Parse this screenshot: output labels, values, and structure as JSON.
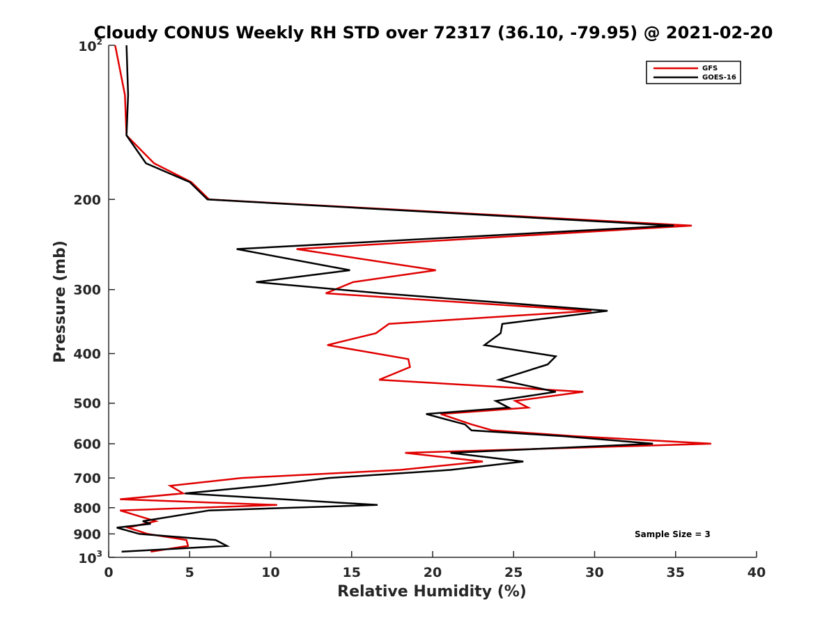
{
  "chart_data": {
    "type": "line",
    "title": "Cloudy CONUS Weekly RH STD over 72317 (36.10, -79.95) @ 2021-02-20",
    "xlabel": "Relative Humidity (%)",
    "ylabel": "Pressure (mb)",
    "xlim": [
      0,
      40
    ],
    "ylim": [
      100,
      1000
    ],
    "y_scale": "log",
    "y_reversed": true,
    "x_ticks": [
      "0",
      "5",
      "10",
      "15",
      "20",
      "25",
      "30",
      "35",
      "40"
    ],
    "y_ticks": [
      {
        "value": 100,
        "label": "10",
        "sup": "2"
      },
      {
        "value": 200,
        "label": "200"
      },
      {
        "value": 300,
        "label": "300"
      },
      {
        "value": 400,
        "label": "400"
      },
      {
        "value": 500,
        "label": "500"
      },
      {
        "value": 600,
        "label": "600"
      },
      {
        "value": 700,
        "label": "700"
      },
      {
        "value": 800,
        "label": "800"
      },
      {
        "value": 900,
        "label": "900"
      },
      {
        "value": 1000,
        "label": "10",
        "sup": "3"
      }
    ],
    "grid": false,
    "legend_position": "top-right",
    "annotation": "Sample Size = 3",
    "series": [
      {
        "name": "GFS",
        "color": "#e00000",
        "points": [
          [
            0.4,
            100
          ],
          [
            1.0,
            125
          ],
          [
            1.1,
            150
          ],
          [
            2.8,
            170
          ],
          [
            5.1,
            185
          ],
          [
            6.2,
            200
          ],
          [
            36.0,
            225
          ],
          [
            11.6,
            250
          ],
          [
            20.2,
            275
          ],
          [
            15.1,
            290
          ],
          [
            13.4,
            305
          ],
          [
            29.8,
            330
          ],
          [
            17.3,
            350
          ],
          [
            16.5,
            365
          ],
          [
            13.5,
            385
          ],
          [
            18.5,
            410
          ],
          [
            18.6,
            425
          ],
          [
            16.7,
            450
          ],
          [
            29.3,
            475
          ],
          [
            25.1,
            495
          ],
          [
            25.9,
            510
          ],
          [
            20.5,
            525
          ],
          [
            22.4,
            550
          ],
          [
            23.7,
            565
          ],
          [
            28.8,
            580
          ],
          [
            37.2,
            600
          ],
          [
            18.3,
            625
          ],
          [
            23.1,
            650
          ],
          [
            18.0,
            675
          ],
          [
            8.2,
            700
          ],
          [
            3.8,
            725
          ],
          [
            4.6,
            750
          ],
          [
            0.7,
            770
          ],
          [
            10.4,
            790
          ],
          [
            0.7,
            810
          ],
          [
            2.9,
            850
          ],
          [
            1.2,
            875
          ],
          [
            2.4,
            900
          ],
          [
            4.8,
            925
          ],
          [
            4.9,
            950
          ],
          [
            2.6,
            975
          ]
        ]
      },
      {
        "name": "GOES-16",
        "color": "#000000",
        "points": [
          [
            1.1,
            100
          ],
          [
            1.2,
            125
          ],
          [
            1.1,
            150
          ],
          [
            2.3,
            170
          ],
          [
            5.0,
            185
          ],
          [
            6.1,
            200
          ],
          [
            34.9,
            225
          ],
          [
            7.9,
            250
          ],
          [
            14.9,
            275
          ],
          [
            9.1,
            290
          ],
          [
            16.8,
            305
          ],
          [
            30.8,
            330
          ],
          [
            24.3,
            350
          ],
          [
            24.2,
            365
          ],
          [
            23.2,
            385
          ],
          [
            27.6,
            405
          ],
          [
            27.1,
            420
          ],
          [
            24.1,
            450
          ],
          [
            27.6,
            475
          ],
          [
            23.9,
            495
          ],
          [
            24.7,
            510
          ],
          [
            19.6,
            525
          ],
          [
            22.0,
            550
          ],
          [
            22.4,
            565
          ],
          [
            28.1,
            580
          ],
          [
            33.6,
            600
          ],
          [
            21.1,
            625
          ],
          [
            25.6,
            650
          ],
          [
            21.1,
            675
          ],
          [
            13.6,
            700
          ],
          [
            9.6,
            725
          ],
          [
            4.7,
            750
          ],
          [
            16.6,
            790
          ],
          [
            6.2,
            810
          ],
          [
            2.1,
            850
          ],
          [
            2.6,
            860
          ],
          [
            0.5,
            875
          ],
          [
            1.9,
            900
          ],
          [
            6.6,
            925
          ],
          [
            7.3,
            950
          ],
          [
            0.8,
            975
          ]
        ]
      }
    ]
  }
}
